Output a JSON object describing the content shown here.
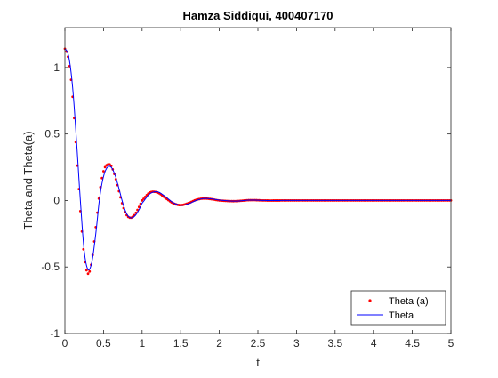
{
  "chart_data": {
    "type": "line",
    "title": "Hamza Siddiqui, 400407170",
    "xlabel": "t",
    "ylabel": "Theta and Theta(a)",
    "xlim": [
      0,
      5
    ],
    "ylim": [
      -1,
      1.3
    ],
    "x_ticks": [
      "0",
      "0.5",
      "1",
      "1.5",
      "2",
      "2.5",
      "3",
      "3.5",
      "4",
      "4.5",
      "5"
    ],
    "y_ticks": [
      "-1",
      "-0.5",
      "0",
      "0.5",
      "1"
    ],
    "grid": false,
    "legend_position": "bottom-right",
    "sample_points": {
      "x": [
        0,
        0.05,
        0.1,
        0.15,
        0.2,
        0.25,
        0.3,
        0.35,
        0.4,
        0.45,
        0.5,
        0.55,
        0.6,
        0.65,
        0.7,
        0.75,
        0.8,
        0.85,
        0.9,
        0.95,
        1.0,
        1.1,
        1.2,
        1.3,
        1.4,
        1.5,
        1.6,
        1.7,
        1.8,
        1.9,
        2.0,
        2.2,
        2.4,
        2.6,
        2.8,
        3.0,
        3.5,
        4.0,
        4.5,
        5.0
      ]
    },
    "series": [
      {
        "name": "Theta (a)",
        "style": "dots",
        "color": "#ff0000",
        "values": [
          1.14,
          1.05,
          0.78,
          0.35,
          -0.08,
          -0.42,
          -0.55,
          -0.45,
          -0.2,
          0.06,
          0.22,
          0.27,
          0.26,
          0.18,
          0.07,
          -0.04,
          -0.11,
          -0.13,
          -0.11,
          -0.06,
          0.0,
          0.06,
          0.06,
          0.02,
          -0.02,
          -0.035,
          -0.02,
          0.005,
          0.015,
          0.01,
          0.0,
          -0.005,
          0.003,
          0.0,
          0.0,
          0.0,
          0.0,
          0.0,
          0.0,
          0.0
        ]
      },
      {
        "name": "Theta",
        "style": "line",
        "color": "#0000ff",
        "values": [
          1.14,
          1.08,
          0.85,
          0.45,
          0.0,
          -0.38,
          -0.52,
          -0.46,
          -0.25,
          0.02,
          0.18,
          0.25,
          0.25,
          0.19,
          0.09,
          -0.02,
          -0.1,
          -0.13,
          -0.12,
          -0.08,
          -0.02,
          0.05,
          0.065,
          0.03,
          -0.015,
          -0.035,
          -0.025,
          0.0,
          0.015,
          0.012,
          0.003,
          -0.005,
          0.003,
          0.0,
          0.0,
          0.0,
          0.0,
          0.0,
          0.0,
          0.0
        ]
      }
    ],
    "legend": [
      "Theta (a)",
      "Theta"
    ]
  }
}
